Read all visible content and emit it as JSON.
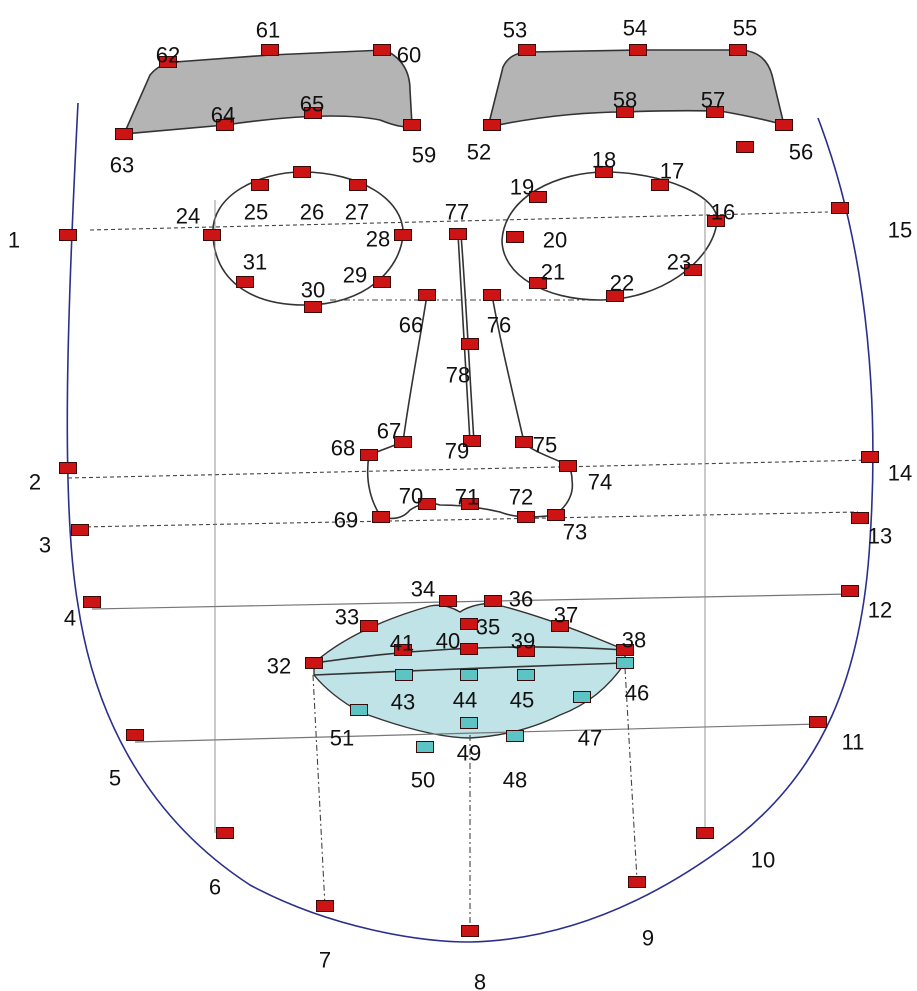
{
  "colors": {
    "landmark_primary": "#cc1414",
    "landmark_inner_lip": "#5cc4c4",
    "outline": "#2b2f8c",
    "brow_fill": "#b4b4b4",
    "lip_fill": "#bfe3e6"
  },
  "landmarks": [
    {
      "id": "1",
      "type": "primary"
    },
    {
      "id": "2",
      "type": "primary"
    },
    {
      "id": "3",
      "type": "primary"
    },
    {
      "id": "4",
      "type": "primary"
    },
    {
      "id": "5",
      "type": "primary"
    },
    {
      "id": "6",
      "type": "primary"
    },
    {
      "id": "7",
      "type": "primary"
    },
    {
      "id": "8",
      "type": "primary"
    },
    {
      "id": "9",
      "type": "primary"
    },
    {
      "id": "10",
      "type": "primary"
    },
    {
      "id": "11",
      "type": "primary"
    },
    {
      "id": "12",
      "type": "primary"
    },
    {
      "id": "13",
      "type": "primary"
    },
    {
      "id": "14",
      "type": "primary"
    },
    {
      "id": "15",
      "type": "primary"
    },
    {
      "id": "16",
      "type": "primary"
    },
    {
      "id": "17",
      "type": "primary"
    },
    {
      "id": "18",
      "type": "primary"
    },
    {
      "id": "19",
      "type": "primary"
    },
    {
      "id": "20",
      "type": "primary"
    },
    {
      "id": "21",
      "type": "primary"
    },
    {
      "id": "22",
      "type": "primary"
    },
    {
      "id": "23",
      "type": "primary"
    },
    {
      "id": "24",
      "type": "primary"
    },
    {
      "id": "25",
      "type": "primary"
    },
    {
      "id": "26",
      "type": "primary"
    },
    {
      "id": "27",
      "type": "primary"
    },
    {
      "id": "28",
      "type": "primary"
    },
    {
      "id": "29",
      "type": "primary"
    },
    {
      "id": "30",
      "type": "primary"
    },
    {
      "id": "31",
      "type": "primary"
    },
    {
      "id": "32",
      "type": "primary"
    },
    {
      "id": "33",
      "type": "primary"
    },
    {
      "id": "34",
      "type": "primary"
    },
    {
      "id": "35",
      "type": "primary"
    },
    {
      "id": "36",
      "type": "primary"
    },
    {
      "id": "37",
      "type": "primary"
    },
    {
      "id": "38",
      "type": "primary"
    },
    {
      "id": "39",
      "type": "primary"
    },
    {
      "id": "40",
      "type": "primary"
    },
    {
      "id": "41",
      "type": "primary"
    },
    {
      "id": "43",
      "type": "inner_lip"
    },
    {
      "id": "44",
      "type": "inner_lip"
    },
    {
      "id": "45",
      "type": "inner_lip"
    },
    {
      "id": "46",
      "type": "inner_lip"
    },
    {
      "id": "47",
      "type": "inner_lip"
    },
    {
      "id": "48",
      "type": "inner_lip"
    },
    {
      "id": "49",
      "type": "inner_lip"
    },
    {
      "id": "50",
      "type": "inner_lip"
    },
    {
      "id": "51",
      "type": "inner_lip"
    },
    {
      "id": "52",
      "type": "primary"
    },
    {
      "id": "53",
      "type": "primary"
    },
    {
      "id": "54",
      "type": "primary"
    },
    {
      "id": "55",
      "type": "primary"
    },
    {
      "id": "56",
      "type": "primary"
    },
    {
      "id": "57",
      "type": "primary"
    },
    {
      "id": "58",
      "type": "primary"
    },
    {
      "id": "59",
      "type": "primary"
    },
    {
      "id": "60",
      "type": "primary"
    },
    {
      "id": "61",
      "type": "primary"
    },
    {
      "id": "62",
      "type": "primary"
    },
    {
      "id": "63",
      "type": "primary"
    },
    {
      "id": "64",
      "type": "primary"
    },
    {
      "id": "65",
      "type": "primary"
    },
    {
      "id": "66",
      "type": "primary"
    },
    {
      "id": "67",
      "type": "primary"
    },
    {
      "id": "68",
      "type": "primary"
    },
    {
      "id": "69",
      "type": "primary"
    },
    {
      "id": "70",
      "type": "primary"
    },
    {
      "id": "71",
      "type": "primary"
    },
    {
      "id": "72",
      "type": "primary"
    },
    {
      "id": "73",
      "type": "primary"
    },
    {
      "id": "74",
      "type": "primary"
    },
    {
      "id": "75",
      "type": "primary"
    },
    {
      "id": "76",
      "type": "primary"
    },
    {
      "id": "77",
      "type": "primary"
    },
    {
      "id": "78",
      "type": "primary"
    },
    {
      "id": "79",
      "type": "primary"
    }
  ]
}
